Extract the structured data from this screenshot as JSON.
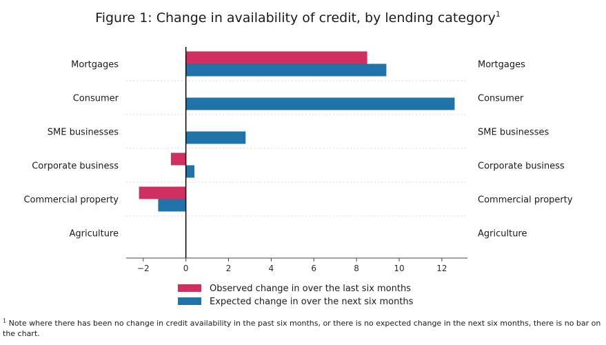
{
  "chart_data": {
    "type": "bar",
    "orientation": "horizontal",
    "title": "Figure 1: Change in availability of credit, by lending category",
    "title_footnote_marker": "1",
    "categories": [
      "Mortgages",
      "Consumer",
      "SME businesses",
      "Corporate business",
      "Commercial property",
      "Agriculture"
    ],
    "series": [
      {
        "name": "Observed change in over the last six months",
        "color": "#d03060",
        "values": [
          8.5,
          0,
          0,
          -0.7,
          -2.2,
          0
        ]
      },
      {
        "name": "Expected change in over the next six months",
        "color": "#1f73a8",
        "values": [
          9.4,
          12.6,
          2.8,
          0.4,
          -1.3,
          0
        ]
      }
    ],
    "xlim": [
      -2.8,
      13.2
    ],
    "xticks": [
      -2,
      0,
      2,
      4,
      6,
      8,
      10,
      12
    ],
    "xtick_labels": [
      "−2",
      "0",
      "2",
      "4",
      "6",
      "8",
      "10",
      "12"
    ],
    "xlabel": "",
    "ylabel": "",
    "grid": "horizontal dotted",
    "legend_position": "bottom-center",
    "category_labels_both_sides": true
  },
  "footnote": {
    "marker": "1",
    "text": "Note where there has been no change in credit availability in the past six months, or there is no expected change in the next six months, there is no bar on the chart."
  }
}
